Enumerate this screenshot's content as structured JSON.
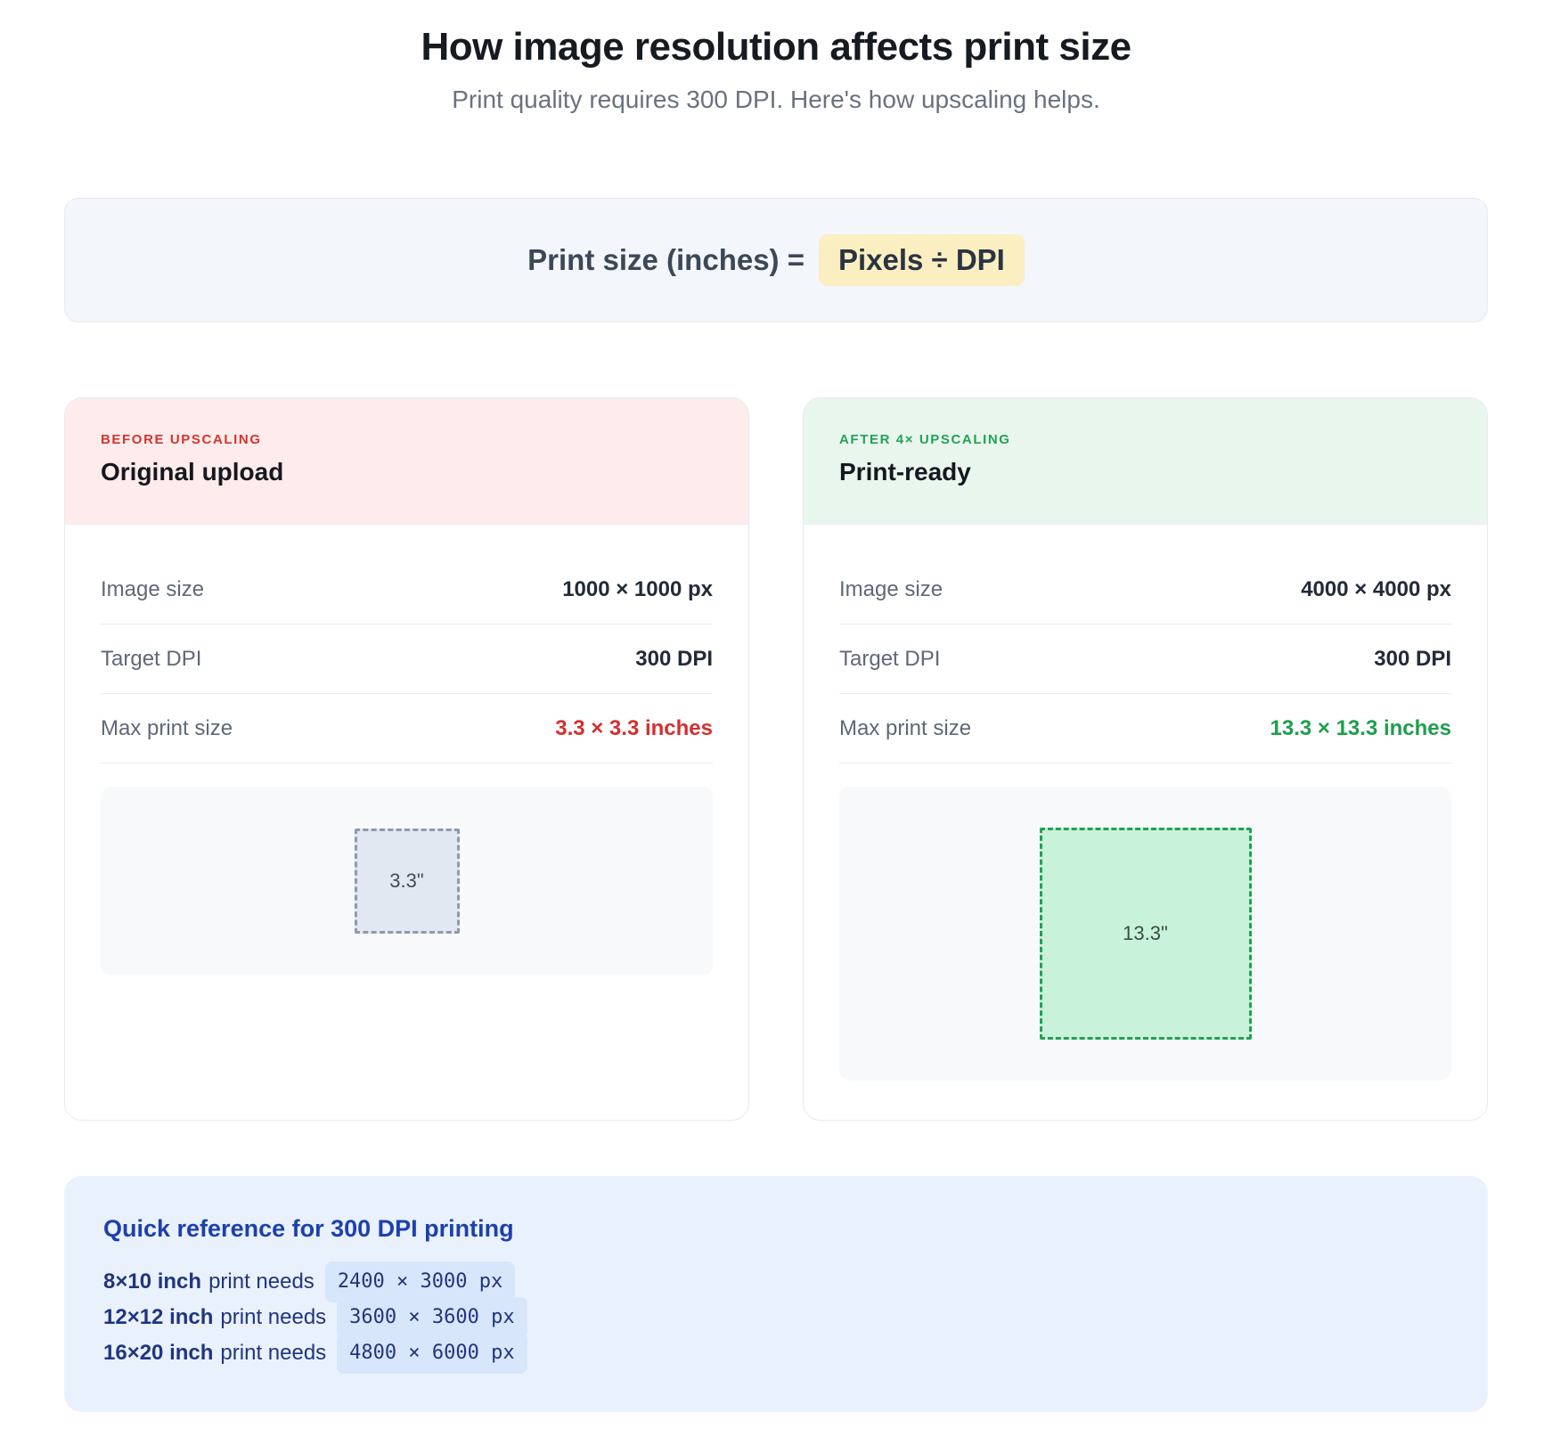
{
  "page": {
    "title": "How image resolution affects print size",
    "subtitle": "Print quality requires 300 DPI. Here's how upscaling helps."
  },
  "formula": {
    "label": "Print size (inches) =",
    "highlighted": "Pixels ÷ DPI"
  },
  "cards": [
    {
      "badge": "BEFORE UPSCALING",
      "title": "Original upload",
      "rows": [
        {
          "label": "Image size",
          "value": "1000 × 1000 px"
        },
        {
          "label": "Target DPI",
          "value": "300 DPI"
        },
        {
          "label": "Max print size",
          "value": "3.3 × 3.3 inches"
        }
      ],
      "preview_label": "3.3\""
    },
    {
      "badge": "AFTER 4× UPSCALING",
      "title": "Print-ready",
      "rows": [
        {
          "label": "Image size",
          "value": "4000 × 4000 px"
        },
        {
          "label": "Target DPI",
          "value": "300 DPI"
        },
        {
          "label": "Max print size",
          "value": "13.3 × 13.3 inches"
        }
      ],
      "preview_label": "13.3\""
    }
  ],
  "reference": {
    "heading": "Quick reference for 300 DPI printing",
    "items": [
      {
        "size": "8×10 inch",
        "connector": "print needs",
        "pixels": "2400 × 3000 px"
      },
      {
        "size": "12×12 inch",
        "connector": "print needs",
        "pixels": "3600 × 3600 px"
      },
      {
        "size": "16×20 inch",
        "connector": "print needs",
        "pixels": "4800 × 6000 px"
      }
    ]
  },
  "colors": {
    "accent_red": "#d32f2f",
    "accent_green": "#1f9e4e",
    "highlight_yellow": "#fbeec1",
    "before_header_bg": "#fdeceb",
    "after_header_bg": "#e9f6ee",
    "reference_bg": "#e9f1fd",
    "reference_text": "#21357f"
  }
}
